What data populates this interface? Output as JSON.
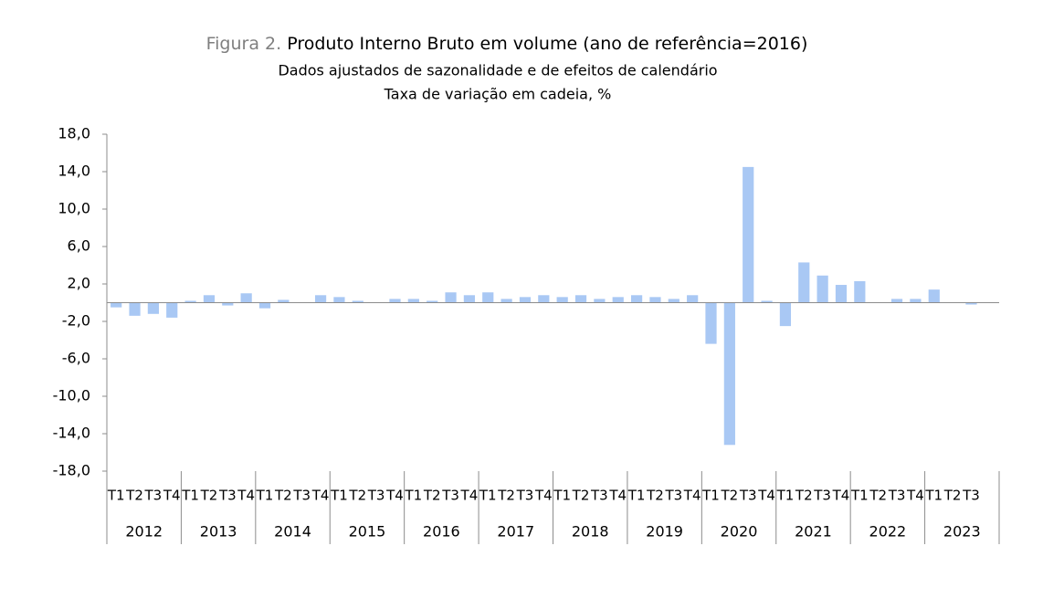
{
  "chart_data": {
    "type": "bar",
    "title_label": "Figura 2.",
    "title": "Produto Interno Bruto em volume (ano de referência=2016)",
    "subtitle": "Dados ajustados de sazonalidade e de efeitos de calendário",
    "subtitle2": "Taxa de variação em cadeia, %",
    "years": [
      "2012",
      "2013",
      "2014",
      "2015",
      "2016",
      "2017",
      "2018",
      "2019",
      "2020",
      "2021",
      "2022",
      "2023"
    ],
    "categories": [
      "T1",
      "T2",
      "T3",
      "T4",
      "T1",
      "T2",
      "T3",
      "T4",
      "T1",
      "T2",
      "T3",
      "T4",
      "T1",
      "T2",
      "T3",
      "T4",
      "T1",
      "T2",
      "T3",
      "T4",
      "T1",
      "T2",
      "T3",
      "T4",
      "T1",
      "T2",
      "T3",
      "T4",
      "T1",
      "T2",
      "T3",
      "T4",
      "T1",
      "T2",
      "T3",
      "T4",
      "T1",
      "T2",
      "T3",
      "T4",
      "T1",
      "T2",
      "T3",
      "T4",
      "T1",
      "T2",
      "T3"
    ],
    "values": [
      -0.5,
      -1.4,
      -1.2,
      -1.6,
      0.2,
      0.8,
      -0.3,
      1.0,
      -0.6,
      0.3,
      0.0,
      0.8,
      0.6,
      0.2,
      0.0,
      0.4,
      0.4,
      0.2,
      1.1,
      0.8,
      1.1,
      0.4,
      0.6,
      0.8,
      0.6,
      0.8,
      0.4,
      0.6,
      0.8,
      0.6,
      0.4,
      0.8,
      -4.4,
      -15.2,
      14.5,
      0.2,
      -2.5,
      4.3,
      2.9,
      1.9,
      2.3,
      0.0,
      0.4,
      0.4,
      1.4,
      0.0,
      -0.2
    ],
    "color": "#a9c8f4",
    "ylim": [
      -18,
      18
    ],
    "yticks": [
      {
        "value": -18,
        "label": "-18,0"
      },
      {
        "value": -14,
        "label": "-14,0"
      },
      {
        "value": -10,
        "label": "-10,0"
      },
      {
        "value": -6,
        "label": "-6,0"
      },
      {
        "value": -2,
        "label": "-2,0"
      },
      {
        "value": 2,
        "label": "2,0"
      },
      {
        "value": 6,
        "label": "6,0"
      },
      {
        "value": 10,
        "label": "10,0"
      },
      {
        "value": 14,
        "label": "14,0"
      },
      {
        "value": 18,
        "label": "18,0"
      }
    ],
    "grid": false
  }
}
